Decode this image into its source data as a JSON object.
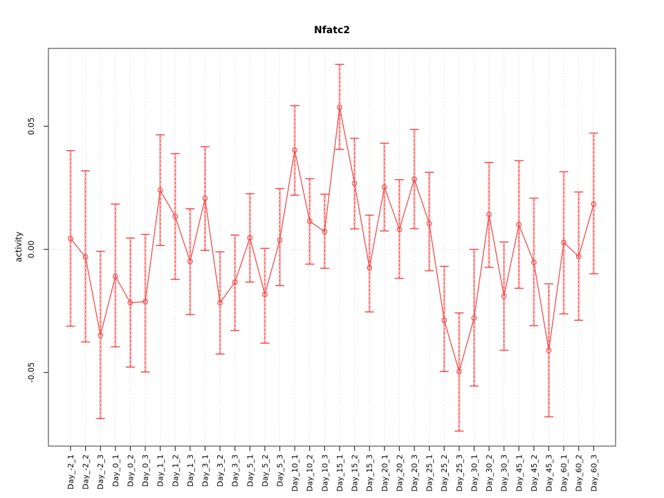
{
  "window": {
    "title": "Nfatc2"
  },
  "chart_data": {
    "type": "line",
    "title": "Nfatc2",
    "xlabel": "",
    "ylabel": "activity",
    "legend_position": "none",
    "grid": "vertical dotted gridlines at every category; dotted horizontal reference line at y=0",
    "marker": "open-circle",
    "error_bars": true,
    "ylim": [
      -0.0799,
      0.0816
    ],
    "yticks": [
      {
        "value": -0.05,
        "label": "-0.05"
      },
      {
        "value": 0.0,
        "label": "0.00"
      },
      {
        "value": 0.05,
        "label": "0.05"
      }
    ],
    "categories": [
      "Day_-2_1",
      "Day_-2_2",
      "Day_-2_3",
      "Day_0_1",
      "Day_0_2",
      "Day_0_3",
      "Day_1_1",
      "Day_1_2",
      "Day_1_3",
      "Day_3_1",
      "Day_3_2",
      "Day_3_3",
      "Day_5_1",
      "Day_5_2",
      "Day_5_3",
      "Day_10_1",
      "Day_10_2",
      "Day_10_3",
      "Day_15_1",
      "Day_15_2",
      "Day_15_3",
      "Day_20_1",
      "Day_20_2",
      "Day_20_3",
      "Day_25_1",
      "Day_25_2",
      "Day_25_3",
      "Day_30_1",
      "Day_30_2",
      "Day_30_3",
      "Day_45_1",
      "Day_45_2",
      "Day_45_3",
      "Day_60_1",
      "Day_60_2",
      "Day_60_3"
    ],
    "series": [
      {
        "name": "activity",
        "values": [
          0.0044,
          -0.0031,
          -0.0349,
          -0.0109,
          -0.0217,
          -0.0212,
          0.024,
          0.0134,
          -0.0049,
          0.0207,
          -0.0217,
          -0.0133,
          0.0047,
          -0.0183,
          0.0038,
          0.0403,
          0.0114,
          0.0072,
          0.0577,
          0.0268,
          -0.0075,
          0.0253,
          0.0081,
          0.0285,
          0.0105,
          -0.0288,
          -0.0496,
          -0.0279,
          0.0142,
          -0.019,
          0.01,
          -0.0053,
          -0.041,
          0.0028,
          -0.0029,
          0.0184
        ],
        "error_low": [
          -0.0312,
          -0.0376,
          -0.0687,
          -0.0396,
          -0.0478,
          -0.0498,
          0.0016,
          -0.0122,
          -0.0265,
          -0.0004,
          -0.0425,
          -0.033,
          -0.0133,
          -0.0381,
          -0.0147,
          0.022,
          -0.006,
          -0.0077,
          0.0406,
          0.0083,
          -0.0254,
          0.0075,
          -0.0118,
          0.0084,
          -0.0087,
          -0.0496,
          -0.0738,
          -0.0555,
          -0.0073,
          -0.041,
          -0.0158,
          -0.031,
          -0.068,
          -0.0262,
          -0.0288,
          -0.0099
        ],
        "error_high": [
          0.0401,
          0.0319,
          -0.0008,
          0.0184,
          0.0046,
          0.0061,
          0.0465,
          0.0389,
          0.0165,
          0.0417,
          -0.001,
          0.0058,
          0.0226,
          0.0004,
          0.0247,
          0.0584,
          0.0287,
          0.0224,
          0.0751,
          0.0451,
          0.0139,
          0.0431,
          0.0283,
          0.0487,
          0.0313,
          -0.0069,
          -0.0258,
          0.0,
          0.0353,
          0.003,
          0.036,
          0.0208,
          -0.014,
          0.0315,
          0.0233,
          0.0472
        ]
      }
    ],
    "colors": {
      "series_red": "#f14b4b",
      "error_stem_pink": "#ffb0b0",
      "gridline": "#cfcfcf",
      "zero_line": "#d8d8d8",
      "axis_box": "#555555",
      "tick": "#333333",
      "background": "#ffffff"
    }
  }
}
